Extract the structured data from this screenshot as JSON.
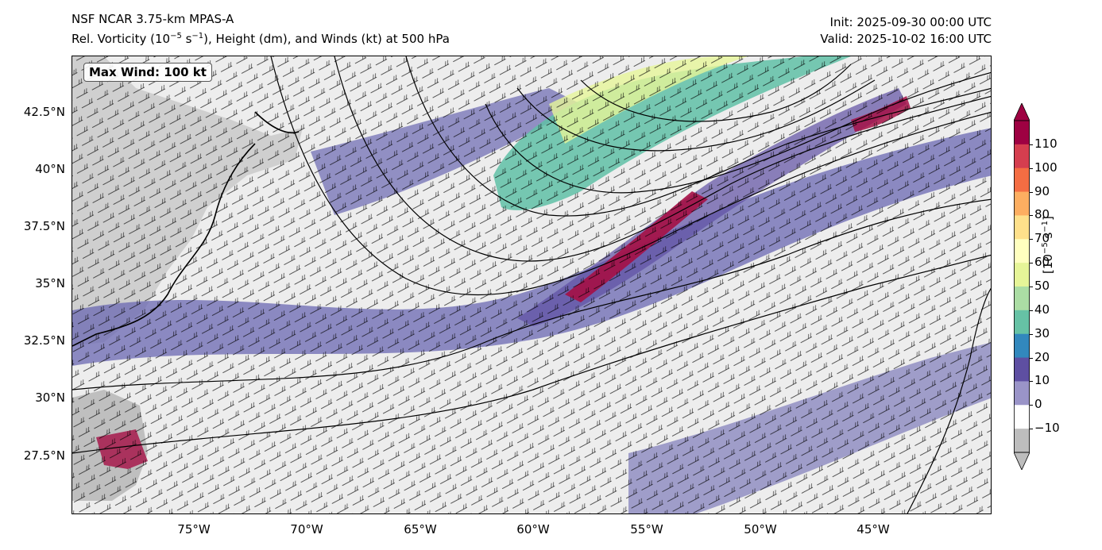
{
  "title": {
    "line1": "NSF NCAR 3.75-km MPAS-A",
    "line2_prefix": "Rel. Vorticity (10",
    "line2_exp1": "−5",
    "line2_mid": " s",
    "line2_exp2": "−1",
    "line2_suffix": "), Height (dm), and Winds (kt) at 500 hPa"
  },
  "times": {
    "init": "Init: 2025-09-30 00:00 UTC",
    "valid": "Valid: 2025-10-02 16:00 UTC"
  },
  "max_wind_label": "Max Wind: 100 kt",
  "axes": {
    "lon_ticks": [
      "75°W",
      "70°W",
      "65°W",
      "60°W",
      "55°W",
      "50°W",
      "45°W"
    ],
    "lat_ticks": [
      "42.5°N",
      "40°N",
      "37.5°N",
      "35°N",
      "32.5°N",
      "30°N",
      "27.5°N"
    ]
  },
  "colorbar": {
    "unit_prefix": "[10",
    "unit_exp1": "−5",
    "unit_mid": " s",
    "unit_exp2": "−1",
    "unit_suffix": "]",
    "ticks": [
      "110",
      "100",
      "90",
      "80",
      "70",
      "60",
      "50",
      "40",
      "30",
      "20",
      "10",
      "0",
      "−10"
    ],
    "colors": [
      "#9e0142",
      "#d53e4f",
      "#f46d43",
      "#fdae61",
      "#fee08b",
      "#ffffbf",
      "#e6f598",
      "#abdda4",
      "#66c2a5",
      "#3288bd",
      "#5e4fa2",
      "#9a94c8",
      "#ffffff",
      "#bdbdbd"
    ]
  },
  "colors": {
    "land": "#bdbdbd",
    "ocean": "#ececec",
    "vort_purple": "#6a67b1",
    "vort_teal": "#5fbfa6",
    "vort_red": "#a50f45",
    "contour": "#000000"
  }
}
